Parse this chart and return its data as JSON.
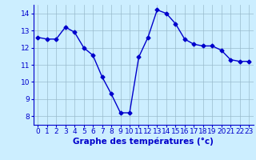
{
  "x": [
    0,
    1,
    2,
    3,
    4,
    5,
    6,
    7,
    8,
    9,
    10,
    11,
    12,
    13,
    14,
    15,
    16,
    17,
    18,
    19,
    20,
    21,
    22,
    23
  ],
  "y": [
    12.6,
    12.5,
    12.5,
    13.2,
    12.9,
    12.0,
    11.55,
    10.3,
    9.3,
    8.2,
    8.2,
    11.45,
    12.6,
    14.2,
    14.0,
    13.4,
    12.5,
    12.2,
    12.1,
    12.1,
    11.85,
    11.3,
    11.2,
    11.2
  ],
  "xlabel": "Graphe des températures (°c)",
  "xlim": [
    -0.5,
    23.5
  ],
  "ylim": [
    7.5,
    14.5
  ],
  "yticks": [
    8,
    9,
    10,
    11,
    12,
    13,
    14
  ],
  "xticks": [
    0,
    1,
    2,
    3,
    4,
    5,
    6,
    7,
    8,
    9,
    10,
    11,
    12,
    13,
    14,
    15,
    16,
    17,
    18,
    19,
    20,
    21,
    22,
    23
  ],
  "line_color": "#0000cc",
  "marker": "D",
  "marker_size": 2.5,
  "bg_color": "#cceeff",
  "grid_color": "#99bbcc",
  "label_color": "#0000cc",
  "tick_label_color": "#0000cc",
  "tick_fontsize": 6.5,
  "xlabel_fontsize": 7.5
}
